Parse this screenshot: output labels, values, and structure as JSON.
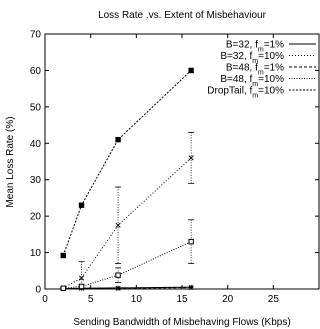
{
  "chart_data": {
    "type": "line",
    "title": "Loss Rate .vs. Extent of Misbehaviour",
    "xlabel": "Sending Bandwidth of Misbehaving Flows (Kbps)",
    "ylabel": "Mean Loss Rate (%)",
    "xlim": [
      0,
      30
    ],
    "ylim": [
      0,
      70
    ],
    "xticks": [
      "0",
      "5",
      "10",
      "15",
      "20",
      "25"
    ],
    "xtick_values": [
      0,
      5,
      10,
      15,
      20,
      25
    ],
    "yticks": [
      "0",
      "10",
      "20",
      "30",
      "40",
      "50",
      "60",
      "70"
    ],
    "ytick_values": [
      0,
      10,
      20,
      30,
      40,
      50,
      60,
      70
    ],
    "grid": false,
    "legend_position": "top-right",
    "series": [
      {
        "name": "B=32, f_m=1%",
        "legend_main": "B=32, f",
        "legend_sub": "m",
        "legend_tail": "=1%",
        "dash": "",
        "marker": "plus",
        "x": [
          2,
          4,
          8,
          16
        ],
        "y": [
          0.1,
          0.2,
          0.3,
          0.5
        ],
        "err": [
          0,
          0,
          0,
          0
        ]
      },
      {
        "name": "B=32, f_m=10%",
        "legend_main": "B=32, f",
        "legend_sub": "m",
        "legend_tail": "=10%",
        "dash": "1,2",
        "marker": "cross",
        "x": [
          2,
          4,
          8,
          16
        ],
        "y": [
          0.3,
          3,
          17.5,
          36
        ],
        "err": [
          0.2,
          4.5,
          10.5,
          7
        ]
      },
      {
        "name": "B=48, f_m=1%",
        "legend_main": "B=48, f",
        "legend_sub": "m",
        "legend_tail": "=1%",
        "dash": "3,2",
        "marker": "star",
        "x": [
          2,
          4,
          8,
          16
        ],
        "y": [
          0.1,
          0.2,
          0.2,
          0.4
        ],
        "err": [
          0,
          0,
          0,
          0
        ]
      },
      {
        "name": "B=48, f_m=10%",
        "legend_main": "B=48, f",
        "legend_sub": "m",
        "legend_tail": "=10%",
        "dash": "1,1.5",
        "marker": "square-open",
        "x": [
          2,
          4,
          8,
          16
        ],
        "y": [
          0.2,
          0.7,
          3.8,
          13
        ],
        "err": [
          0.1,
          0.5,
          2,
          6
        ]
      },
      {
        "name": "DropTail, f_m=10%",
        "legend_main": "DropTail, f",
        "legend_sub": "m",
        "legend_tail": "=10%",
        "dash": "2,1.5",
        "marker": "square-filled",
        "x": [
          2,
          4,
          8,
          16
        ],
        "y": [
          9.2,
          23,
          41,
          60
        ],
        "err": [
          0,
          0,
          0,
          0
        ]
      }
    ]
  }
}
